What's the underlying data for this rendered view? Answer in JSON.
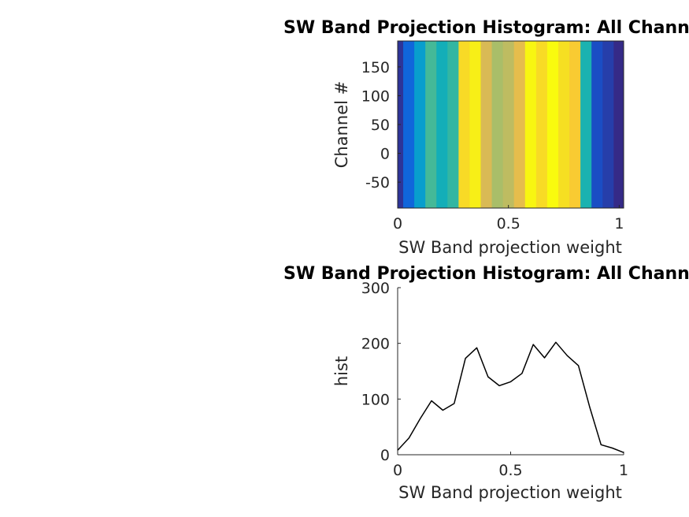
{
  "chart_data": [
    {
      "type": "heatmap",
      "title": "SW Band Projection Histogram: All Channels",
      "xlabel": "SW Band projection weight",
      "ylabel": "Channel #",
      "xlim": [
        0,
        1.02
      ],
      "ylim": [
        -95,
        195
      ],
      "x_ticks": [
        "0",
        "0.5",
        "1"
      ],
      "y_ticks": [
        "-50",
        "0",
        "50",
        "100",
        "150"
      ],
      "colormap": "parula",
      "column_values": [
        8,
        30,
        65,
        97,
        80,
        92,
        173,
        192,
        140,
        124,
        131,
        146,
        198,
        174,
        202,
        178,
        160,
        85,
        18,
        12,
        4
      ]
    },
    {
      "type": "line",
      "title": "SW Band Projection Histogram: All Channels",
      "xlabel": "SW Band projection weight",
      "ylabel": "hist",
      "xlim": [
        0,
        1
      ],
      "ylim": [
        0,
        300
      ],
      "x_ticks": [
        "0",
        "0.5",
        "1"
      ],
      "y_ticks": [
        "0",
        "100",
        "200",
        "300"
      ],
      "line_color": "#000000",
      "x": [
        0,
        0.05,
        0.1,
        0.15,
        0.2,
        0.25,
        0.3,
        0.35,
        0.4,
        0.45,
        0.5,
        0.55,
        0.6,
        0.65,
        0.7,
        0.75,
        0.8,
        0.85,
        0.9,
        0.95,
        1.0
      ],
      "y": [
        8,
        30,
        65,
        97,
        80,
        92,
        173,
        192,
        140,
        124,
        131,
        146,
        198,
        174,
        202,
        178,
        160,
        85,
        18,
        12,
        4
      ]
    }
  ]
}
